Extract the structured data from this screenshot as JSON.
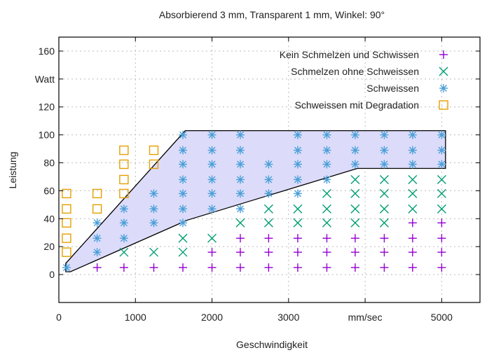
{
  "chart_data": {
    "type": "scatter",
    "title": "Absorbierend 3 mm, Transparent 1 mm, Winkel: 90°",
    "xlabel": "Geschwindigkeit",
    "ylabel": "Leistung",
    "xlim": [
      0,
      5500
    ],
    "ylim": [
      -20,
      170
    ],
    "x_ticks": [
      {
        "value": 0,
        "label": "0"
      },
      {
        "value": 1000,
        "label": "1000"
      },
      {
        "value": 2000,
        "label": "2000"
      },
      {
        "value": 3000,
        "label": "3000"
      },
      {
        "value": 4000,
        "label": "mm/sec"
      },
      {
        "value": 5000,
        "label": "5000"
      }
    ],
    "y_ticks": [
      {
        "value": 0,
        "label": "0"
      },
      {
        "value": 20,
        "label": "20"
      },
      {
        "value": 40,
        "label": "40"
      },
      {
        "value": 60,
        "label": "60"
      },
      {
        "value": 80,
        "label": "80"
      },
      {
        "value": 100,
        "label": "100"
      },
      {
        "value": 120,
        "label": "120"
      },
      {
        "value": 140,
        "label": "Watt"
      },
      {
        "value": 160,
        "label": "160"
      }
    ],
    "grid": true,
    "legend_position": "top-right",
    "region": {
      "color": "#dcdcfa",
      "outline": "#000000",
      "polygon": [
        [
          90,
          2
        ],
        [
          150,
          2
        ],
        [
          1680,
          39
        ],
        [
          3900,
          76
        ],
        [
          5050,
          76
        ],
        [
          5050,
          103
        ],
        [
          1650,
          103
        ],
        [
          90,
          8
        ]
      ]
    },
    "series": [
      {
        "name": "Kein Schmelzen und Schwissen",
        "marker": "plus",
        "color": "#9400d3",
        "points": [
          [
            500,
            5
          ],
          [
            850,
            5
          ],
          [
            1240,
            5
          ],
          [
            1620,
            5
          ],
          [
            2000,
            5
          ],
          [
            2370,
            5
          ],
          [
            2740,
            5
          ],
          [
            3120,
            5
          ],
          [
            3500,
            5
          ],
          [
            3870,
            5
          ],
          [
            4250,
            5
          ],
          [
            4620,
            5
          ],
          [
            5000,
            5
          ],
          [
            2000,
            16
          ],
          [
            2370,
            16
          ],
          [
            2740,
            16
          ],
          [
            3120,
            16
          ],
          [
            3500,
            16
          ],
          [
            3870,
            16
          ],
          [
            4250,
            16
          ],
          [
            4620,
            16
          ],
          [
            5000,
            16
          ],
          [
            2370,
            26
          ],
          [
            2740,
            26
          ],
          [
            3120,
            26
          ],
          [
            3500,
            26
          ],
          [
            3870,
            26
          ],
          [
            4250,
            26
          ],
          [
            4620,
            26
          ],
          [
            5000,
            26
          ],
          [
            4620,
            37
          ],
          [
            5000,
            37
          ]
        ]
      },
      {
        "name": "Schmelzen ohne Schweissen",
        "marker": "x",
        "color": "#009e73",
        "points": [
          [
            850,
            16
          ],
          [
            1240,
            16
          ],
          [
            1620,
            16
          ],
          [
            1620,
            26
          ],
          [
            2000,
            26
          ],
          [
            2370,
            37
          ],
          [
            2740,
            37
          ],
          [
            3120,
            37
          ],
          [
            3500,
            37
          ],
          [
            3870,
            37
          ],
          [
            4250,
            37
          ],
          [
            2740,
            47
          ],
          [
            3120,
            47
          ],
          [
            3500,
            47
          ],
          [
            3870,
            47
          ],
          [
            4250,
            47
          ],
          [
            4620,
            47
          ],
          [
            5000,
            47
          ],
          [
            3500,
            58
          ],
          [
            3870,
            58
          ],
          [
            4250,
            58
          ],
          [
            4620,
            58
          ],
          [
            5000,
            58
          ],
          [
            3870,
            68
          ],
          [
            4250,
            68
          ],
          [
            4620,
            68
          ],
          [
            5000,
            68
          ]
        ]
      },
      {
        "name": "Schweissen",
        "marker": "star",
        "color": "#4a9fd8",
        "points": [
          [
            100,
            5
          ],
          [
            500,
            16
          ],
          [
            500,
            26
          ],
          [
            500,
            37
          ],
          [
            850,
            26
          ],
          [
            850,
            37
          ],
          [
            850,
            47
          ],
          [
            1240,
            37
          ],
          [
            1240,
            47
          ],
          [
            1240,
            58
          ],
          [
            1620,
            37
          ],
          [
            1620,
            47
          ],
          [
            1620,
            58
          ],
          [
            1620,
            68
          ],
          [
            1620,
            79
          ],
          [
            1620,
            89
          ],
          [
            1620,
            100
          ],
          [
            2000,
            47
          ],
          [
            2000,
            58
          ],
          [
            2000,
            68
          ],
          [
            2000,
            79
          ],
          [
            2000,
            89
          ],
          [
            2000,
            100
          ],
          [
            2370,
            47
          ],
          [
            2370,
            58
          ],
          [
            2370,
            68
          ],
          [
            2370,
            79
          ],
          [
            2370,
            89
          ],
          [
            2370,
            100
          ],
          [
            2740,
            58
          ],
          [
            2740,
            68
          ],
          [
            2740,
            79
          ],
          [
            3120,
            58
          ],
          [
            3120,
            68
          ],
          [
            3120,
            79
          ],
          [
            3120,
            89
          ],
          [
            3120,
            100
          ],
          [
            3500,
            68
          ],
          [
            3500,
            79
          ],
          [
            3500,
            89
          ],
          [
            3500,
            100
          ],
          [
            3870,
            79
          ],
          [
            3870,
            89
          ],
          [
            3870,
            100
          ],
          [
            4250,
            79
          ],
          [
            4250,
            89
          ],
          [
            4250,
            100
          ],
          [
            4620,
            79
          ],
          [
            4620,
            89
          ],
          [
            4620,
            100
          ],
          [
            5000,
            79
          ],
          [
            5000,
            89
          ],
          [
            5000,
            100
          ]
        ]
      },
      {
        "name": "Schweissen mit Degradation",
        "marker": "square",
        "color": "#e69f00",
        "points": [
          [
            100,
            16
          ],
          [
            100,
            26
          ],
          [
            100,
            37
          ],
          [
            100,
            47
          ],
          [
            100,
            58
          ],
          [
            500,
            47
          ],
          [
            500,
            58
          ],
          [
            850,
            58
          ],
          [
            850,
            68
          ],
          [
            850,
            79
          ],
          [
            850,
            89
          ],
          [
            1240,
            79
          ],
          [
            1240,
            89
          ]
        ]
      }
    ]
  }
}
